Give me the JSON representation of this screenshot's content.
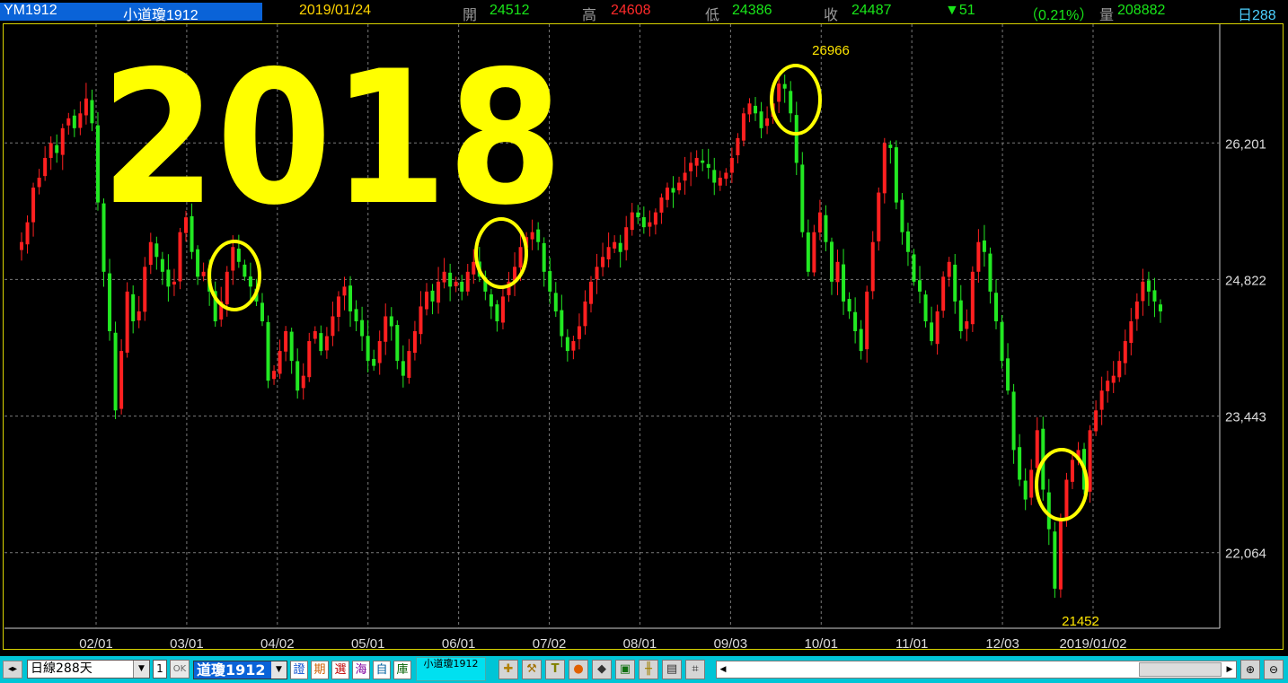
{
  "header": {
    "symbol": "YM1912",
    "name": "小道瓊1912",
    "date": "2019/01/24",
    "open_label": "開",
    "open": "24512",
    "high_label": "高",
    "high": "24608",
    "low_label": "低",
    "low": "24386",
    "close_label": "收",
    "close": "24487",
    "change": "▼51",
    "change_pct": "（0.21%）",
    "volume_label": "量",
    "volume": "208882",
    "days": "日288"
  },
  "colors": {
    "up": "#ff2020",
    "down": "#22e822",
    "annotation": "#ffff00",
    "grid": "#7a7a7a",
    "axis_text": "#dcdcdc"
  },
  "chart_data": {
    "type": "candlestick",
    "annotation_text": "2018",
    "x_tick_labels": [
      "02/01",
      "03/01",
      "04/02",
      "05/01",
      "06/01",
      "07/02",
      "08/01",
      "09/03",
      "10/01",
      "11/01",
      "12/03",
      "2019/01/02"
    ],
    "y_tick_labels": [
      "26,201",
      "24,822",
      "23,443",
      "22,064"
    ],
    "y_ticks": [
      26201,
      24822,
      23443,
      22064
    ],
    "ylim": [
      21300,
      27400
    ],
    "peak_label": "26966",
    "trough_label": "21452",
    "peak_value": 26966,
    "trough_value": 21452,
    "highlighted_circles": [
      "03/01-04/02",
      "06/01-07/02",
      "09/03-10/01",
      "12/03-2019/01/02"
    ],
    "grid": true,
    "series": [
      {
        "values": [
          25200,
          25400,
          25750,
          25850,
          26050,
          26200,
          26100,
          26350,
          26450,
          26350,
          26500,
          26650,
          26400,
          25600,
          24900,
          24300,
          23500,
          24100,
          24700,
          24400,
          24500,
          24950,
          25200,
          25050,
          24900,
          24750,
          24800,
          25300,
          25450,
          25100,
          24850,
          24900,
          24700,
          24400,
          24600,
          24900,
          25150,
          25000,
          24850,
          24750,
          24600,
          24400,
          23800,
          23900,
          24100,
          24300,
          24000,
          23700,
          23850,
          24200,
          24300,
          24100,
          24250,
          24450,
          24650,
          24750,
          24500,
          24400,
          24250,
          24000,
          23950,
          24200,
          24450,
          24350,
          24000,
          23850,
          24100,
          24300,
          24550,
          24700,
          24600,
          24800,
          24900,
          24750,
          24800,
          24700,
          24900,
          25000,
          24850,
          24700,
          24550,
          24400,
          24650,
          24800,
          24950,
          25150,
          25250,
          25300,
          25200,
          24900,
          24700,
          24500,
          24250,
          24100,
          24200,
          24350,
          24600,
          24800,
          24950,
          25050,
          25150,
          25200,
          25100,
          25350,
          25500,
          25450,
          25350,
          25400,
          25500,
          25650,
          25750,
          25700,
          25800,
          25900,
          26000,
          26050,
          26000,
          25950,
          25800,
          25850,
          25900,
          26050,
          26250,
          26500,
          26600,
          26500,
          26350,
          26450,
          26600,
          26800,
          26750,
          26500,
          26000,
          25300,
          24900,
          25300,
          25500,
          25200,
          24800,
          25000,
          24600,
          24500,
          24300,
          24100,
          24700,
          25200,
          25700,
          26200,
          26150,
          25600,
          25300,
          25100,
          24800,
          24700,
          24400,
          24200,
          24500,
          24850,
          25000,
          24600,
          24300,
          24400,
          24900,
          25200,
          25100,
          24700,
          24400,
          24000,
          23700,
          23100,
          22800,
          22600,
          22900,
          23300,
          22700,
          22300,
          21700,
          22400,
          22800,
          23000,
          23100,
          22700,
          23300,
          23500,
          23700,
          23800,
          23850,
          24000,
          24200,
          24400,
          24600,
          24800,
          24700,
          24600,
          24500
        ]
      }
    ]
  },
  "toolbar": {
    "nav": "◂▸",
    "period": "日線288天",
    "qty": "1",
    "ok": "OK",
    "symbol": "道瓊1912",
    "tag1": "證",
    "tag2": "期",
    "tag3": "選",
    "tag4": "海",
    "tag5": "自",
    "tag6": "庫",
    "tab": "小道瓊1912",
    "zoom_in": "⊕",
    "zoom_out": "⊖"
  }
}
